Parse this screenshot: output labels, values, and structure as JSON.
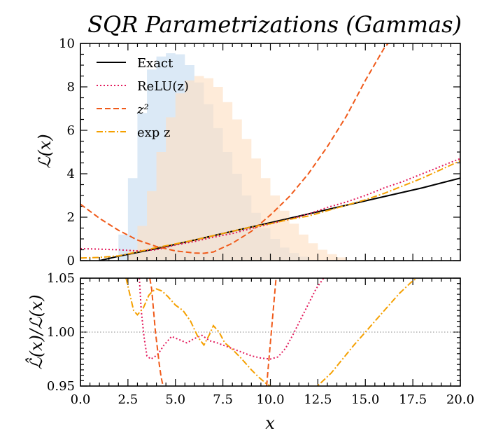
{
  "chart_data": [
    {
      "type": "line",
      "title": "SQR Parametrizations (Gammas)",
      "ylabel": "ℒ(x)",
      "xlim": [
        0,
        20
      ],
      "ylim": [
        0,
        10
      ],
      "yticks": [
        "0",
        "2",
        "4",
        "6",
        "8",
        "10"
      ],
      "legend_position": "top-left",
      "histograms": [
        {
          "color": "#cfe2f3",
          "x": [
            2.0,
            2.5,
            3.0,
            3.5,
            4.0,
            4.5,
            5.0,
            5.5,
            6.0,
            6.5,
            7.0,
            7.5,
            8.0,
            8.5,
            9.0,
            9.5,
            10.0,
            10.5,
            11.0,
            11.5,
            12.0
          ],
          "values": [
            1.2,
            3.8,
            6.8,
            8.8,
            9.4,
            9.55,
            9.5,
            9.0,
            8.2,
            7.2,
            6.1,
            5.0,
            4.0,
            3.0,
            2.2,
            1.5,
            1.0,
            0.6,
            0.35,
            0.18,
            0.0
          ]
        },
        {
          "color": "#fde0c4",
          "x": [
            2.5,
            3.0,
            3.5,
            4.0,
            4.5,
            5.0,
            5.5,
            6.0,
            6.5,
            7.0,
            7.5,
            8.0,
            8.5,
            9.0,
            9.5,
            10.0,
            10.5,
            11.0,
            11.5,
            12.0,
            12.5,
            13.0,
            13.5,
            14.0
          ],
          "values": [
            0.5,
            1.6,
            3.2,
            5.0,
            6.6,
            7.7,
            8.3,
            8.5,
            8.4,
            8.0,
            7.3,
            6.5,
            5.6,
            4.7,
            3.8,
            3.0,
            2.3,
            1.7,
            1.2,
            0.8,
            0.5,
            0.3,
            0.15,
            0.0
          ]
        }
      ],
      "series": [
        {
          "name": "Exact",
          "color": "#000000",
          "dash": "solid",
          "x": [
            1.0,
            2.0,
            4.0,
            6.0,
            8.0,
            10.0,
            12.0,
            14.0,
            16.0,
            18.0,
            20.0
          ],
          "values": [
            0.0,
            0.2,
            0.55,
            0.95,
            1.35,
            1.75,
            2.15,
            2.55,
            2.95,
            3.35,
            3.8
          ]
        },
        {
          "name": "ReLU(z)",
          "color": "#e31a5c",
          "dash": "dotted",
          "x": [
            0.0,
            1.0,
            2.0,
            3.0,
            4.0,
            5.0,
            6.0,
            7.0,
            8.0,
            9.0,
            10.0,
            11.0,
            12.0,
            13.0,
            14.0,
            15.0,
            16.0,
            17.0,
            18.0,
            19.0,
            20.0
          ],
          "values": [
            0.55,
            0.53,
            0.5,
            0.45,
            0.5,
            0.72,
            0.88,
            1.08,
            1.25,
            1.48,
            1.7,
            1.9,
            2.15,
            2.45,
            2.7,
            3.0,
            3.35,
            3.65,
            4.0,
            4.35,
            4.7
          ]
        },
        {
          "name": "z²",
          "color": "#f05a1a",
          "dash": "dashed",
          "x": [
            0.0,
            1.0,
            2.0,
            3.0,
            4.0,
            5.0,
            6.0,
            6.5,
            7.0,
            8.0,
            9.0,
            10.0,
            11.0,
            12.0,
            13.0,
            14.0,
            15.0,
            16.0,
            16.3
          ],
          "values": [
            2.6,
            1.95,
            1.4,
            0.95,
            0.65,
            0.45,
            0.35,
            0.34,
            0.4,
            0.8,
            1.35,
            2.1,
            2.95,
            4.0,
            5.25,
            6.65,
            8.3,
            9.8,
            10.1
          ]
        },
        {
          "name": "exp z",
          "color": "#f5a000",
          "dash": "dashdot",
          "x": [
            0.0,
            1.0,
            2.0,
            3.0,
            4.0,
            5.0,
            6.0,
            7.0,
            8.0,
            9.0,
            10.0,
            11.0,
            12.0,
            13.0,
            14.0,
            15.0,
            16.0,
            17.0,
            18.0,
            19.0,
            20.0
          ],
          "values": [
            0.12,
            0.15,
            0.22,
            0.4,
            0.6,
            0.77,
            0.95,
            1.15,
            1.35,
            1.55,
            1.7,
            1.9,
            2.05,
            2.3,
            2.55,
            2.8,
            3.1,
            3.45,
            3.8,
            4.2,
            4.6
          ]
        }
      ]
    },
    {
      "type": "line",
      "xlabel": "x",
      "ylabel": "ℒ̂(x)/ℒ(x)",
      "xlim": [
        0,
        20
      ],
      "ylim": [
        0.95,
        1.05
      ],
      "xticks": [
        "0.0",
        "2.5",
        "5.0",
        "7.5",
        "10.0",
        "12.5",
        "15.0",
        "17.5",
        "20.0"
      ],
      "yticks": [
        "0.95",
        "1.00",
        "1.05"
      ],
      "reference_line": 1.0,
      "series": [
        {
          "name": "ReLU(z)",
          "color": "#e31a5c",
          "dash": "dotted",
          "x": [
            3.1,
            3.2,
            3.35,
            3.5,
            3.7,
            3.9,
            4.1,
            4.4,
            4.8,
            5.2,
            5.6,
            6.0,
            6.4,
            6.8,
            7.2,
            7.8,
            8.4,
            9.0,
            9.5,
            10.0,
            10.4,
            10.8,
            11.2,
            11.6,
            12.0,
            12.4,
            12.8
          ],
          "values": [
            1.05,
            1.02,
            0.995,
            0.978,
            0.975,
            0.977,
            0.98,
            0.988,
            0.996,
            0.993,
            0.99,
            0.994,
            0.997,
            0.992,
            0.99,
            0.986,
            0.982,
            0.978,
            0.976,
            0.975,
            0.977,
            0.985,
            0.998,
            1.012,
            1.026,
            1.04,
            1.05
          ]
        },
        {
          "name": "z²",
          "color": "#f05a1a",
          "dash": "dashed",
          "segments": [
            {
              "x": [
                3.65,
                3.75,
                3.85,
                3.95,
                4.05,
                4.15,
                4.25,
                4.35
              ],
              "values": [
                1.05,
                1.04,
                1.02,
                1.0,
                0.985,
                0.97,
                0.958,
                0.95
              ]
            },
            {
              "x": [
                9.8,
                9.9,
                10.0,
                10.1,
                10.2,
                10.3
              ],
              "values": [
                0.95,
                0.97,
                0.99,
                1.01,
                1.03,
                1.05
              ]
            }
          ]
        },
        {
          "name": "exp z",
          "color": "#f5a000",
          "dash": "dashdot",
          "x": [
            2.4,
            2.6,
            2.8,
            3.0,
            3.3,
            3.6,
            3.8,
            4.0,
            4.3,
            4.6,
            5.0,
            5.4,
            5.8,
            6.2,
            6.5,
            6.8,
            7.0,
            7.3,
            7.6,
            8.0,
            8.5,
            9.0,
            9.4,
            9.8,
            10.2,
            10.8,
            11.4,
            12.0,
            12.6,
            13.2,
            13.8,
            14.4,
            15.0,
            15.6,
            16.2,
            16.8,
            17.4,
            17.7
          ],
          "values": [
            1.05,
            1.035,
            1.02,
            1.016,
            1.022,
            1.034,
            1.038,
            1.04,
            1.038,
            1.033,
            1.025,
            1.02,
            1.01,
            0.995,
            0.988,
            0.998,
            1.006,
            1.0,
            0.99,
            0.984,
            0.975,
            0.965,
            0.958,
            0.952,
            0.948,
            0.942,
            0.94,
            0.944,
            0.952,
            0.962,
            0.975,
            0.988,
            1.0,
            1.012,
            1.024,
            1.036,
            1.046,
            1.05
          ]
        }
      ]
    }
  ]
}
